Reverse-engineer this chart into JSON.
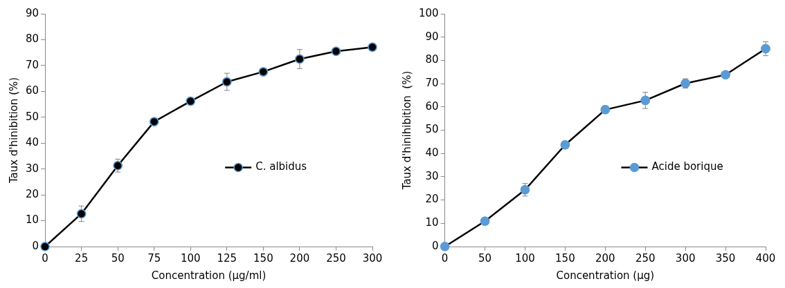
{
  "chart_data": [
    {
      "type": "line",
      "categories": [
        "0",
        "25",
        "50",
        "75",
        "100",
        "125",
        "150",
        "200",
        "250",
        "300"
      ],
      "xlabel": "Concentration (µg/ml)",
      "ylabel": "Taux d'hinibition (%)",
      "ylim": [
        0,
        90
      ],
      "yticks": [
        0,
        10,
        20,
        30,
        40,
        50,
        60,
        70,
        80,
        90
      ],
      "grid": false,
      "legend": "center right",
      "marker": "circle",
      "line_style": "solid",
      "series": [
        {
          "name": "C. albidus",
          "color": "#000000",
          "values": [
            0,
            12.7,
            31.3,
            48.3,
            56.2,
            63.7,
            67.6,
            72.5,
            75.5,
            77.1
          ],
          "errors": [
            null,
            3,
            2.5,
            null,
            null,
            3.3,
            null,
            3.7,
            null,
            null
          ]
        }
      ]
    },
    {
      "type": "line",
      "categories": [
        "0",
        "50",
        "100",
        "150",
        "200",
        "250",
        "300",
        "350",
        "400"
      ],
      "xlabel": "Concentration (µg)",
      "ylabel": "Taux d'hinihibition  (%)",
      "ylim": [
        0,
        100
      ],
      "yticks": [
        0,
        10,
        20,
        30,
        40,
        50,
        60,
        70,
        80,
        90,
        100
      ],
      "grid": false,
      "legend": "center right",
      "marker": "circle",
      "line_style": "solid",
      "series": [
        {
          "name": "Acide borique",
          "color": "#5b9bd5",
          "values": [
            0,
            10.9,
            24.4,
            43.7,
            58.8,
            62.8,
            70.1,
            73.8,
            85
          ],
          "errors": [
            null,
            null,
            2.7,
            null,
            null,
            3.5,
            2,
            null,
            3
          ]
        }
      ]
    }
  ]
}
